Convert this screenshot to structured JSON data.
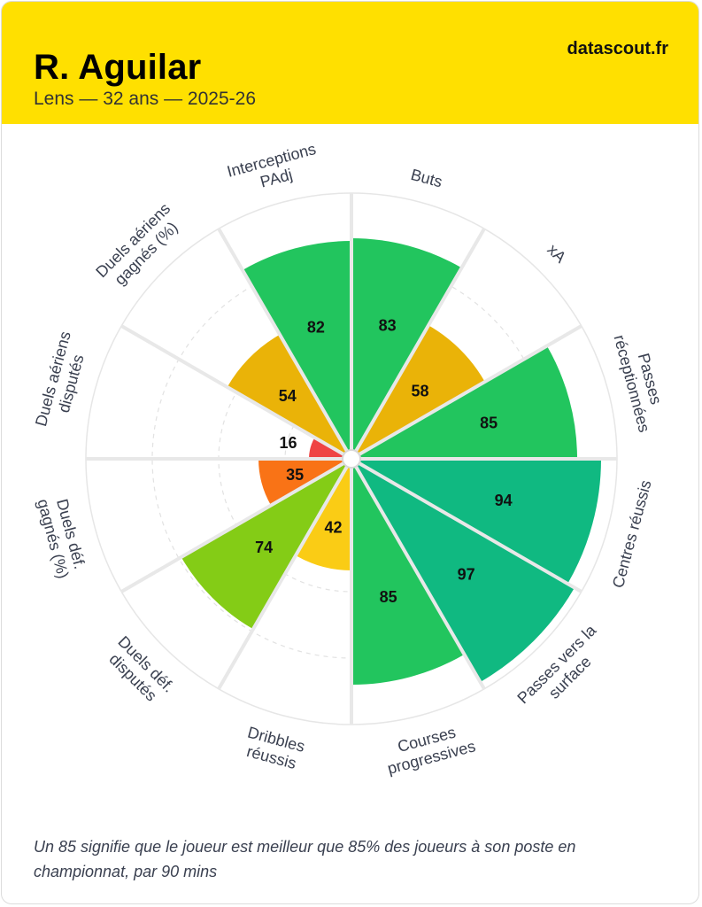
{
  "header": {
    "player_name": "R. Aguilar",
    "subtitle": "Lens — 32 ans — 2025-26",
    "brand": "datascout.fr",
    "background_color": "#ffe000"
  },
  "footnote": "Un 85 signifie que le joueur est meilleur que 85% des joueurs à son poste en championnat, par 90 mins",
  "chart_data": {
    "type": "pie",
    "subtype": "polar-area",
    "range": [
      0,
      100
    ],
    "categories": [
      {
        "label_lines": [
          "Buts"
        ],
        "value": 83,
        "color": "#22c55e"
      },
      {
        "label_lines": [
          "xA"
        ],
        "value": 58,
        "color": "#eab308"
      },
      {
        "label_lines": [
          "Passes",
          "réceptionnées"
        ],
        "value": 85,
        "color": "#22c55e"
      },
      {
        "label_lines": [
          "Centres réussis"
        ],
        "value": 94,
        "color": "#10b981"
      },
      {
        "label_lines": [
          "Passes vers la",
          "surface"
        ],
        "value": 97,
        "color": "#10b981"
      },
      {
        "label_lines": [
          "Courses",
          "progressives"
        ],
        "value": 85,
        "color": "#22c55e"
      },
      {
        "label_lines": [
          "Dribbles",
          "réussis"
        ],
        "value": 42,
        "color": "#facc15"
      },
      {
        "label_lines": [
          "Duels déf.",
          "disputés"
        ],
        "value": 74,
        "color": "#84cc16"
      },
      {
        "label_lines": [
          "Duels déf.",
          "gagnés (%)"
        ],
        "value": 35,
        "color": "#f97316"
      },
      {
        "label_lines": [
          "Duels aériens",
          "disputés"
        ],
        "value": 16,
        "color": "#ef4444"
      },
      {
        "label_lines": [
          "Duels aériens",
          "gagnés (%)"
        ],
        "value": 54,
        "color": "#eab308"
      },
      {
        "label_lines": [
          "Interceptions",
          "PAdj"
        ],
        "value": 82,
        "color": "#22c55e"
      }
    ],
    "grid": true
  }
}
